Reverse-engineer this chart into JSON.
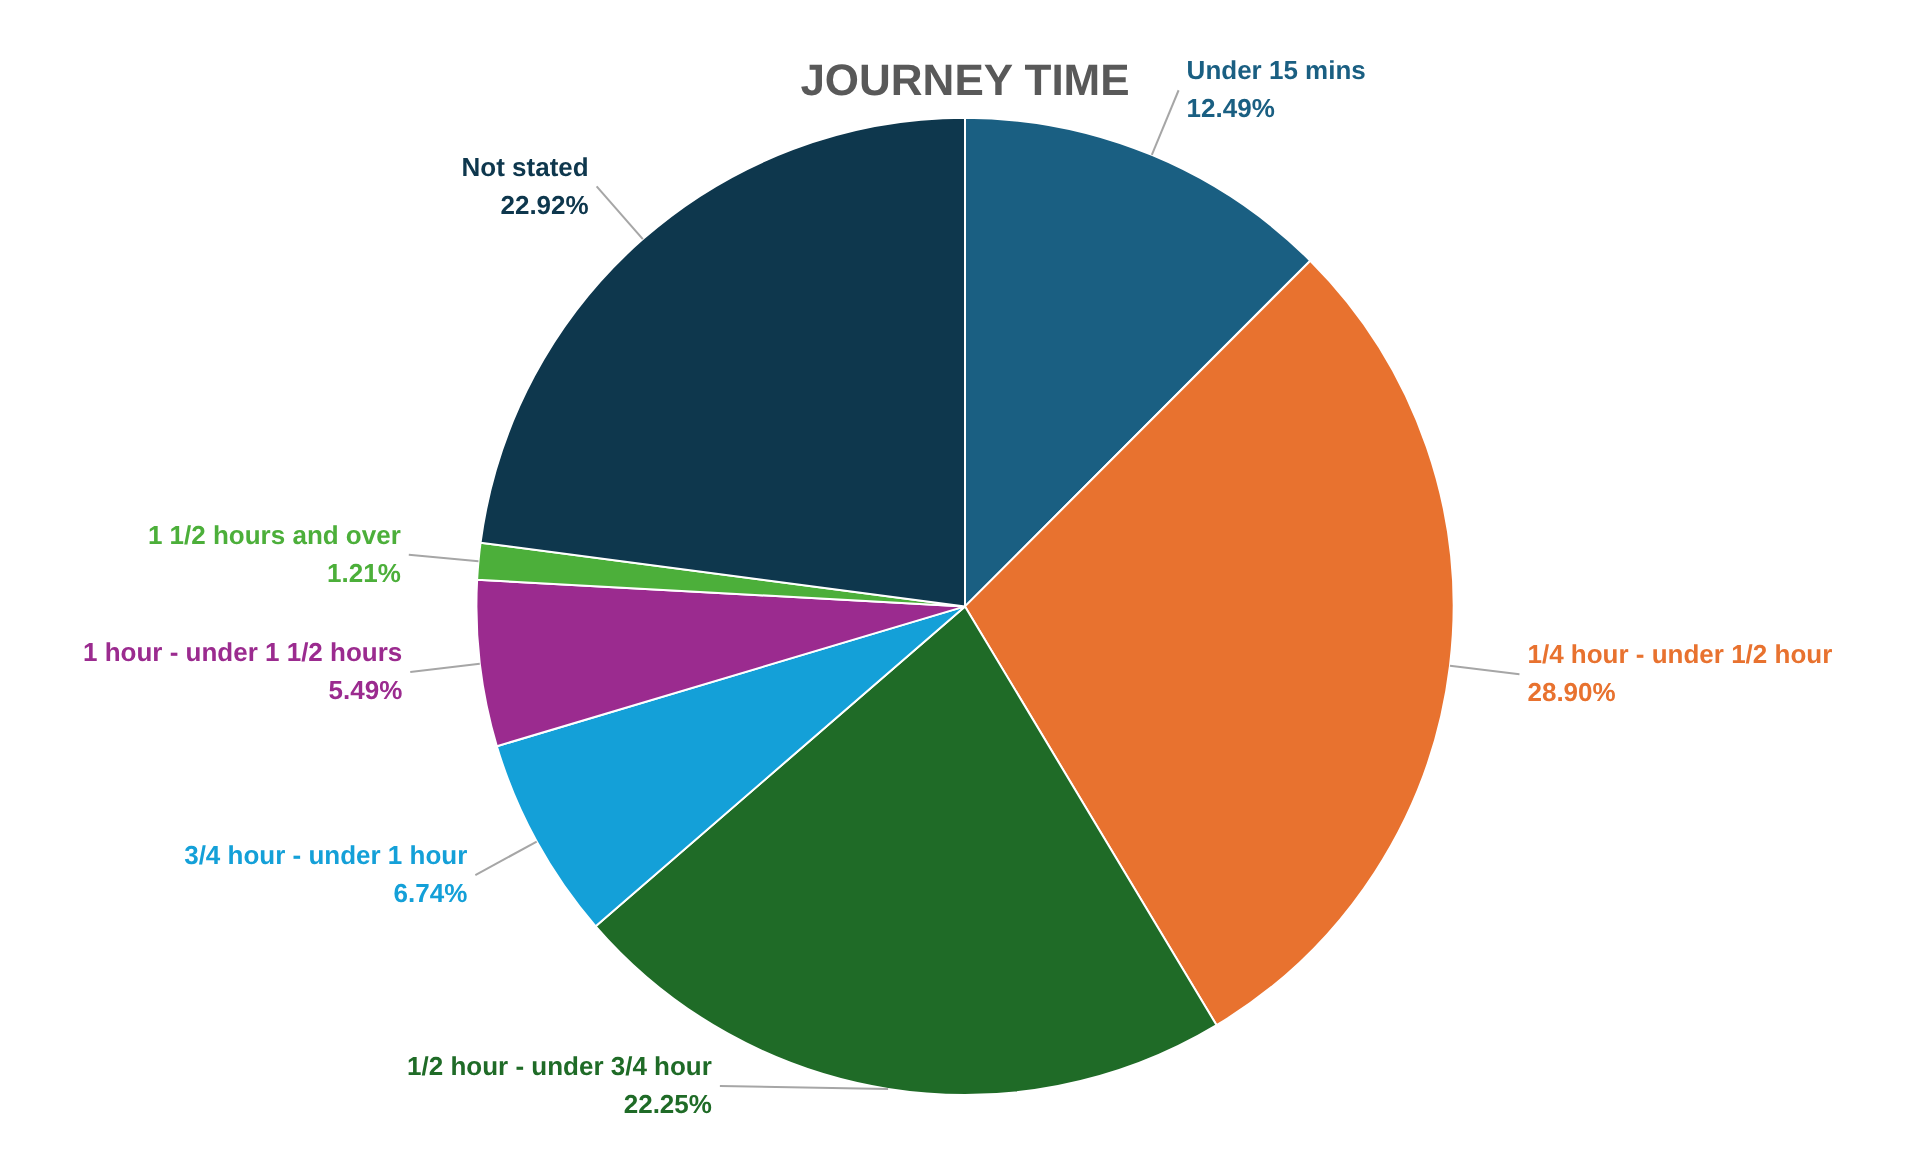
{
  "chart_data": {
    "type": "pie",
    "title": "JOURNEY TIME",
    "categories": [
      "Under 15 mins",
      "1/4 hour - under 1/2 hour",
      "1/2 hour - under 3/4 hour",
      "3/4 hour - under 1 hour",
      "1 hour - under 1 1/2 hours",
      "1 1/2 hours and over",
      "Not stated"
    ],
    "values": [
      12.49,
      28.9,
      22.25,
      6.74,
      5.49,
      1.21,
      22.92
    ],
    "value_labels": [
      "12.49%",
      "28.90%",
      "22.25%",
      "6.74%",
      "5.49%",
      "1.21%",
      "22.92%"
    ],
    "colors": [
      "#1a5f82",
      "#e8722f",
      "#1f6b27",
      "#14a0d8",
      "#9b2b8f",
      "#4caf3a",
      "#0e374d"
    ]
  }
}
